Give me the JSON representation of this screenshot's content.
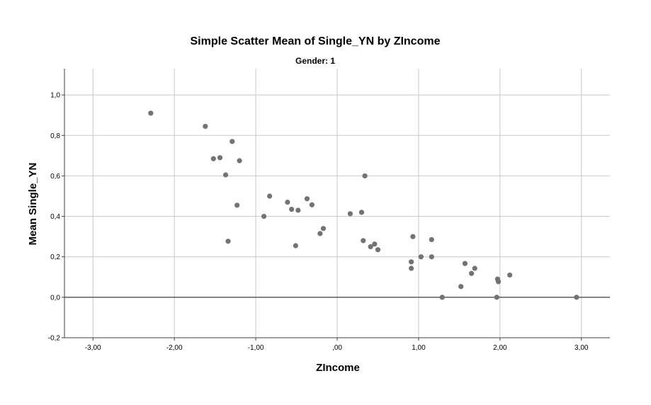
{
  "chart_data": {
    "type": "scatter",
    "title": "Simple Scatter Mean of Single_YN by ZIncome",
    "subtitle": "Gender: 1",
    "xlabel": "ZIncome",
    "ylabel": "Mean Single_YN",
    "xlim": [
      -3.35,
      3.35
    ],
    "ylim": [
      -0.2,
      1.13
    ],
    "x_ticks": [
      -3.0,
      -2.0,
      -1.0,
      0.0,
      1.0,
      2.0,
      3.0
    ],
    "x_tick_labels": [
      "-3,00",
      "-2,00",
      "-1,00",
      ",00",
      "1,00",
      "2,00",
      "3,00"
    ],
    "y_ticks": [
      -0.2,
      0.0,
      0.2,
      0.4,
      0.6,
      0.8,
      1.0
    ],
    "y_tick_labels": [
      "-0,2",
      "0,0",
      "0,2",
      "0,4",
      "0,6",
      "0,8",
      "1,0"
    ],
    "reference_line_y": 0.0,
    "grid": true,
    "marker_color": "#737373",
    "points": [
      {
        "x": -2.29,
        "y": 0.91
      },
      {
        "x": -1.62,
        "y": 0.845
      },
      {
        "x": -1.52,
        "y": 0.685
      },
      {
        "x": -1.44,
        "y": 0.69
      },
      {
        "x": -1.37,
        "y": 0.605
      },
      {
        "x": -1.34,
        "y": 0.277
      },
      {
        "x": -1.29,
        "y": 0.77
      },
      {
        "x": -1.23,
        "y": 0.455
      },
      {
        "x": -1.2,
        "y": 0.675
      },
      {
        "x": -0.9,
        "y": 0.4
      },
      {
        "x": -0.83,
        "y": 0.5
      },
      {
        "x": -0.61,
        "y": 0.47
      },
      {
        "x": -0.56,
        "y": 0.435
      },
      {
        "x": -0.51,
        "y": 0.255
      },
      {
        "x": -0.48,
        "y": 0.43
      },
      {
        "x": -0.37,
        "y": 0.487
      },
      {
        "x": -0.31,
        "y": 0.457
      },
      {
        "x": -0.21,
        "y": 0.315
      },
      {
        "x": -0.17,
        "y": 0.34
      },
      {
        "x": 0.16,
        "y": 0.413
      },
      {
        "x": 0.3,
        "y": 0.42
      },
      {
        "x": 0.32,
        "y": 0.28
      },
      {
        "x": 0.34,
        "y": 0.6
      },
      {
        "x": 0.41,
        "y": 0.25
      },
      {
        "x": 0.46,
        "y": 0.263
      },
      {
        "x": 0.5,
        "y": 0.235
      },
      {
        "x": 0.91,
        "y": 0.143
      },
      {
        "x": 0.91,
        "y": 0.175
      },
      {
        "x": 0.93,
        "y": 0.3
      },
      {
        "x": 1.03,
        "y": 0.2
      },
      {
        "x": 1.16,
        "y": 0.285
      },
      {
        "x": 1.16,
        "y": 0.2
      },
      {
        "x": 1.29,
        "y": 0.0
      },
      {
        "x": 1.52,
        "y": 0.053
      },
      {
        "x": 1.57,
        "y": 0.167
      },
      {
        "x": 1.65,
        "y": 0.118
      },
      {
        "x": 1.69,
        "y": 0.143
      },
      {
        "x": 1.96,
        "y": 0.0
      },
      {
        "x": 1.97,
        "y": 0.09
      },
      {
        "x": 1.98,
        "y": 0.077
      },
      {
        "x": 2.12,
        "y": 0.11
      },
      {
        "x": 2.94,
        "y": 0.0
      }
    ]
  }
}
